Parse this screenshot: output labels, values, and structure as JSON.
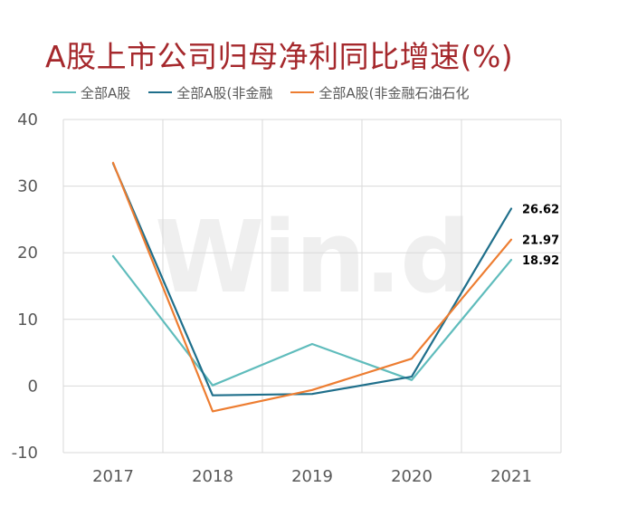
{
  "chart_data": {
    "type": "line",
    "title": "A股上市公司归母净利同比增速(%)",
    "categories": [
      "2017",
      "2018",
      "2019",
      "2020",
      "2021"
    ],
    "ylim": [
      -10,
      40
    ],
    "yticks": [
      -10,
      0,
      10,
      20,
      30,
      40
    ],
    "grid": true,
    "legend_position": "top",
    "watermark": "Win.d",
    "series": [
      {
        "name": "全部A股",
        "color": "#5fbcbc",
        "values": [
          19.5,
          0.1,
          6.3,
          0.9,
          18.92
        ],
        "end_label": "18.92"
      },
      {
        "name": "全部A股(非金融",
        "color": "#1f6f8b",
        "values": [
          33.4,
          -1.4,
          -1.2,
          1.4,
          26.62
        ],
        "end_label": "26.62"
      },
      {
        "name": "全部A股(非金融石油石化",
        "color": "#ed7d31",
        "values": [
          33.5,
          -3.8,
          -0.6,
          4.1,
          21.97
        ],
        "end_label": "21.97"
      }
    ]
  }
}
